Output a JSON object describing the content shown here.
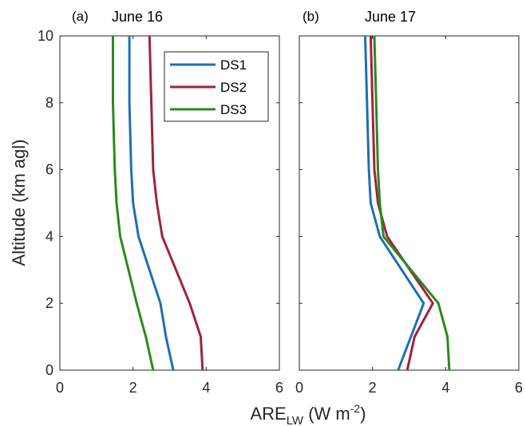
{
  "chart_data": [
    {
      "type": "line",
      "panel_label": "(a)",
      "title": "June 16",
      "ylabel": "Altitude (km agl)",
      "xlim": [
        0,
        6
      ],
      "ylim": [
        0,
        10
      ],
      "xticks": [
        "0",
        "2",
        "4",
        "6"
      ],
      "yticks": [
        "0",
        "2",
        "4",
        "6",
        "8",
        "10"
      ],
      "legend": "top-right",
      "series": [
        {
          "name": "DS1",
          "color": "#1f6fb4",
          "x": [
            3.1,
            2.9,
            2.75,
            2.15,
            2.0,
            1.95,
            1.9,
            1.9
          ],
          "y": [
            0,
            1,
            2,
            4,
            5,
            6,
            8,
            10
          ]
        },
        {
          "name": "DS2",
          "color": "#a2213f",
          "x": [
            3.9,
            3.85,
            3.55,
            2.8,
            2.65,
            2.55,
            2.5,
            2.45
          ],
          "y": [
            0,
            1,
            2,
            4,
            5,
            6,
            8,
            10
          ]
        },
        {
          "name": "DS3",
          "color": "#2a8a1e",
          "x": [
            2.55,
            2.35,
            2.1,
            1.65,
            1.55,
            1.5,
            1.45,
            1.45
          ],
          "y": [
            0,
            1,
            2,
            4,
            5,
            6,
            8,
            10
          ]
        }
      ]
    },
    {
      "type": "line",
      "panel_label": "(b)",
      "title": "June 17",
      "xlim": [
        0,
        6
      ],
      "ylim": [
        0,
        10
      ],
      "xticks": [
        "0",
        "2",
        "4",
        "6"
      ],
      "yticks": [
        "0",
        "2",
        "4",
        "6",
        "8",
        "10"
      ],
      "series": [
        {
          "name": "DS1",
          "color": "#1f6fb4",
          "x": [
            2.7,
            3.4,
            2.2,
            1.95,
            1.9,
            1.85,
            1.8
          ],
          "y": [
            0,
            2,
            4,
            5,
            6,
            8,
            10
          ]
        },
        {
          "name": "DS2",
          "color": "#a2213f",
          "x": [
            2.95,
            3.15,
            3.65,
            2.4,
            2.15,
            2.05,
            2.0,
            1.95
          ],
          "y": [
            0,
            1,
            2,
            4,
            5,
            6,
            8,
            10
          ]
        },
        {
          "name": "DS3",
          "color": "#2a8a1e",
          "x": [
            4.1,
            4.05,
            3.8,
            2.3,
            2.2,
            2.15,
            2.1,
            2.05
          ],
          "y": [
            0,
            1,
            2,
            4,
            5,
            6,
            8,
            10
          ]
        }
      ]
    }
  ],
  "shared_xlabel": {
    "main": "ARE",
    "sub": "LW",
    "units_pre": " (W m",
    "units_sup": "-2",
    "units_post": ")"
  }
}
